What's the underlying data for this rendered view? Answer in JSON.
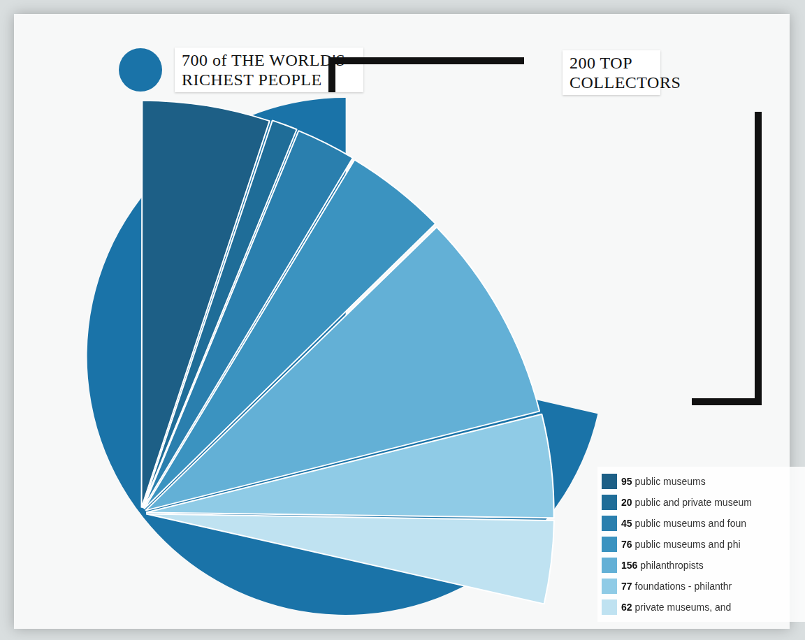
{
  "chart_data": {
    "type": "pie",
    "total": {
      "label": "700 of THE WORLD'S RICHEST PEOPLE",
      "value": 700,
      "color": "#1a73a8"
    },
    "subset": {
      "label": "200 TOP COLLECTORS",
      "value": 200
    },
    "categories": [
      "public museums",
      "public and private museum",
      "public museums and foun",
      "public museums and phi",
      "philanthropists",
      "foundations - philanthr",
      "private museums, and"
    ],
    "values": [
      95,
      20,
      45,
      76,
      156,
      77,
      62
    ],
    "colors": [
      "#1d5f86",
      "#1f6d98",
      "#2a7fae",
      "#3b93c0",
      "#63b0d6",
      "#8fcbe6",
      "#bfe2f1"
    ]
  }
}
